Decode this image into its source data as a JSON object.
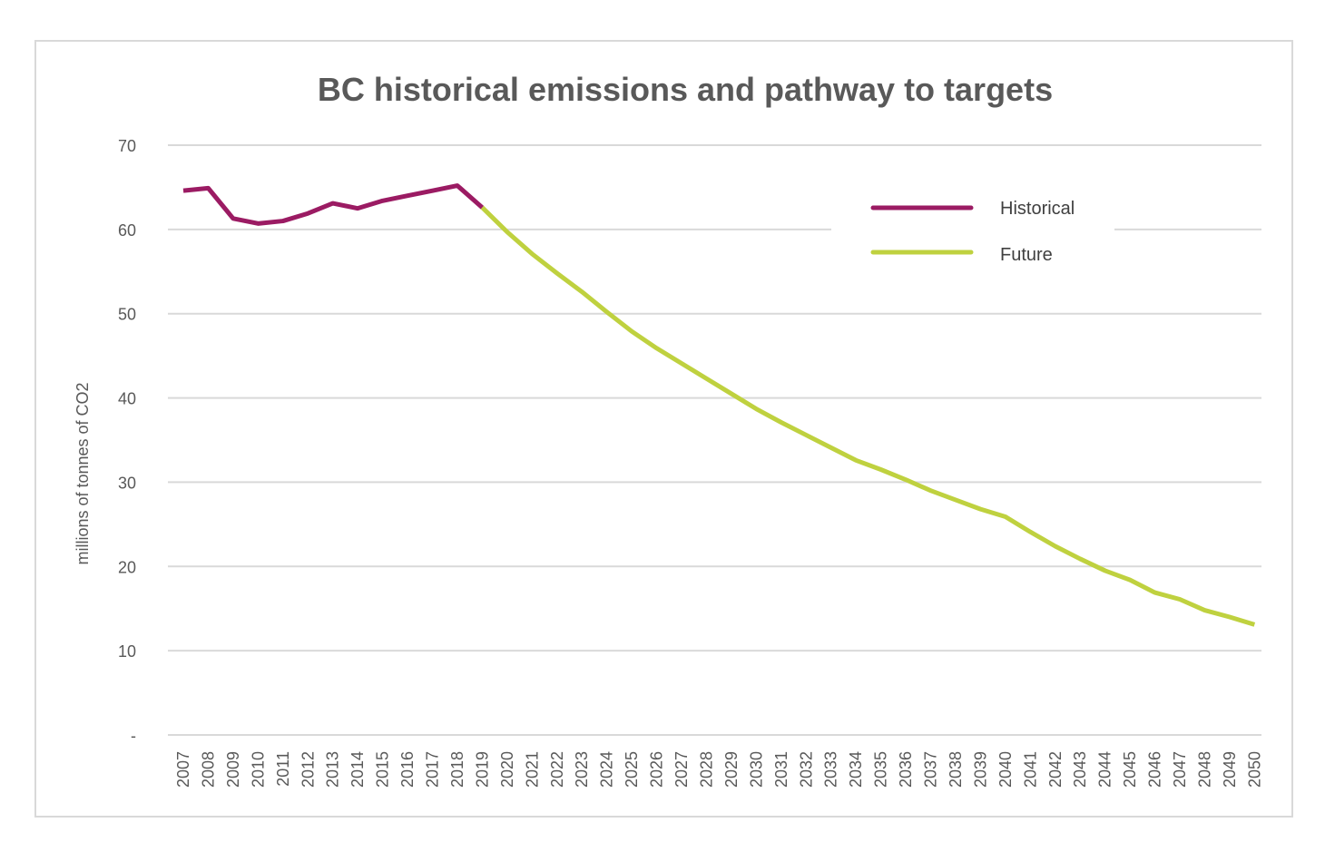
{
  "chart_data": {
    "type": "line",
    "title": "BC historical emissions and pathway to targets",
    "xlabel": "",
    "ylabel": "millions of tonnes of CO2",
    "ylim": [
      0,
      70
    ],
    "yticks": [
      {
        "value": 0,
        "label": "-"
      },
      {
        "value": 10,
        "label": "10"
      },
      {
        "value": 20,
        "label": "20"
      },
      {
        "value": 30,
        "label": "30"
      },
      {
        "value": 40,
        "label": "40"
      },
      {
        "value": 50,
        "label": "50"
      },
      {
        "value": 60,
        "label": "60"
      },
      {
        "value": 70,
        "label": "70"
      }
    ],
    "grid": true,
    "legend_position": "top-right",
    "categories": [
      "2007",
      "2008",
      "2009",
      "2010",
      "2011",
      "2012",
      "2013",
      "2014",
      "2015",
      "2016",
      "2017",
      "2018",
      "2019",
      "2020",
      "2021",
      "2022",
      "2023",
      "2024",
      "2025",
      "2026",
      "2027",
      "2028",
      "2029",
      "2030",
      "2031",
      "2032",
      "2033",
      "2034",
      "2035",
      "2036",
      "2037",
      "2038",
      "2039",
      "2040",
      "2041",
      "2042",
      "2043",
      "2044",
      "2045",
      "2046",
      "2047",
      "2048",
      "2049",
      "2050"
    ],
    "series": [
      {
        "name": "Historical",
        "color": "#9b1b63",
        "points": [
          {
            "x": "2007",
            "y": 64.6
          },
          {
            "x": "2008",
            "y": 64.9
          },
          {
            "x": "2009",
            "y": 61.3
          },
          {
            "x": "2010",
            "y": 60.7
          },
          {
            "x": "2011",
            "y": 61.0
          },
          {
            "x": "2012",
            "y": 61.9
          },
          {
            "x": "2013",
            "y": 63.1
          },
          {
            "x": "2014",
            "y": 62.5
          },
          {
            "x": "2015",
            "y": 63.4
          },
          {
            "x": "2016",
            "y": 64.0
          },
          {
            "x": "2017",
            "y": 64.6
          },
          {
            "x": "2018",
            "y": 65.2
          },
          {
            "x": "2019",
            "y": 62.6
          }
        ]
      },
      {
        "name": "Future",
        "color": "#bfd13f",
        "points": [
          {
            "x": "2019",
            "y": 62.6
          },
          {
            "x": "2020",
            "y": 59.7
          },
          {
            "x": "2021",
            "y": 57.1
          },
          {
            "x": "2022",
            "y": 54.8
          },
          {
            "x": "2023",
            "y": 52.6
          },
          {
            "x": "2024",
            "y": 50.2
          },
          {
            "x": "2025",
            "y": 47.9
          },
          {
            "x": "2026",
            "y": 45.9
          },
          {
            "x": "2027",
            "y": 44.1
          },
          {
            "x": "2028",
            "y": 42.3
          },
          {
            "x": "2029",
            "y": 40.5
          },
          {
            "x": "2030",
            "y": 38.7
          },
          {
            "x": "2031",
            "y": 37.1
          },
          {
            "x": "2032",
            "y": 35.6
          },
          {
            "x": "2033",
            "y": 34.1
          },
          {
            "x": "2034",
            "y": 32.6
          },
          {
            "x": "2035",
            "y": 31.5
          },
          {
            "x": "2036",
            "y": 30.3
          },
          {
            "x": "2037",
            "y": 29.0
          },
          {
            "x": "2038",
            "y": 27.9
          },
          {
            "x": "2039",
            "y": 26.8
          },
          {
            "x": "2040",
            "y": 25.9
          },
          {
            "x": "2041",
            "y": 24.1
          },
          {
            "x": "2042",
            "y": 22.4
          },
          {
            "x": "2043",
            "y": 20.9
          },
          {
            "x": "2044",
            "y": 19.5
          },
          {
            "x": "2045",
            "y": 18.4
          },
          {
            "x": "2046",
            "y": 16.9
          },
          {
            "x": "2047",
            "y": 16.1
          },
          {
            "x": "2048",
            "y": 14.8
          },
          {
            "x": "2049",
            "y": 14.0
          },
          {
            "x": "2050",
            "y": 13.1
          }
        ]
      }
    ]
  }
}
